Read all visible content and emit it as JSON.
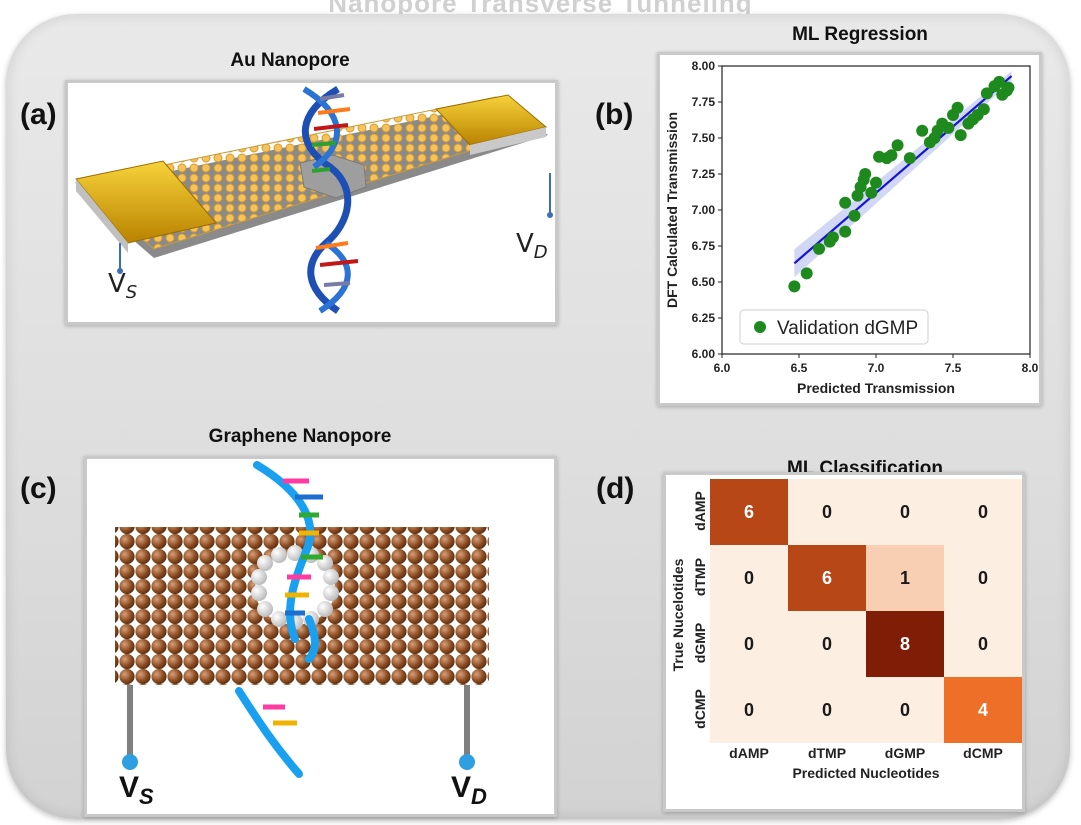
{
  "banner": "Nanopore Transverse Tunneling",
  "panel_a": {
    "label": "(a)",
    "title": "Au Nanopore",
    "vs": "V",
    "vs_sub": "S",
    "vd": "V",
    "vd_sub": "D"
  },
  "panel_b": {
    "label": "(b)",
    "title": "ML Regression"
  },
  "panel_c": {
    "label": "(c)",
    "title": "Graphene Nanopore",
    "vs": "V",
    "vs_sub": "S",
    "vd": "V",
    "vd_sub": "D"
  },
  "panel_d": {
    "label": "(d)",
    "title": "ML Classification"
  },
  "colors": {
    "scatter": "#1e8a1e",
    "fit": "#1515d0",
    "heat_low": "#fdeee2",
    "heat_high": "#7f1d06",
    "dna_blue": "#1e5fd0",
    "gold": "#f0b400"
  },
  "chart_data": [
    {
      "type": "scatter",
      "xlabel": "Predicted Transmission",
      "ylabel": "DFT Calculated Transmission",
      "xlim": [
        6.0,
        8.0
      ],
      "ylim": [
        6.0,
        8.0
      ],
      "xticks": [
        "6.0",
        "6.5",
        "7.0",
        "7.5",
        "8.0"
      ],
      "yticks": [
        "6.00",
        "6.25",
        "6.50",
        "6.75",
        "7.00",
        "7.25",
        "7.50",
        "7.75",
        "8.00"
      ],
      "legend": "Validation dGMP",
      "legend_position": "lower-right",
      "series": [
        {
          "name": "Validation dGMP",
          "points": [
            [
              6.47,
              6.47
            ],
            [
              6.55,
              6.56
            ],
            [
              6.63,
              6.73
            ],
            [
              6.7,
              6.78
            ],
            [
              6.72,
              6.81
            ],
            [
              6.8,
              6.85
            ],
            [
              6.8,
              7.05
            ],
            [
              6.86,
              6.96
            ],
            [
              6.88,
              7.1
            ],
            [
              6.9,
              7.16
            ],
            [
              6.92,
              7.21
            ],
            [
              6.93,
              7.25
            ],
            [
              6.97,
              7.12
            ],
            [
              7.0,
              7.19
            ],
            [
              7.02,
              7.37
            ],
            [
              7.07,
              7.36
            ],
            [
              7.1,
              7.38
            ],
            [
              7.14,
              7.45
            ],
            [
              7.22,
              7.36
            ],
            [
              7.3,
              7.55
            ],
            [
              7.35,
              7.47
            ],
            [
              7.38,
              7.5
            ],
            [
              7.4,
              7.55
            ],
            [
              7.43,
              7.6
            ],
            [
              7.47,
              7.57
            ],
            [
              7.5,
              7.66
            ],
            [
              7.53,
              7.71
            ],
            [
              7.55,
              7.52
            ],
            [
              7.6,
              7.6
            ],
            [
              7.63,
              7.63
            ],
            [
              7.66,
              7.66
            ],
            [
              7.7,
              7.7
            ],
            [
              7.72,
              7.81
            ],
            [
              7.77,
              7.86
            ],
            [
              7.8,
              7.89
            ],
            [
              7.82,
              7.8
            ],
            [
              7.85,
              7.83
            ],
            [
              7.86,
              7.85
            ]
          ]
        }
      ],
      "fit_line": [
        [
          6.47,
          6.63
        ],
        [
          7.88,
          7.93
        ]
      ]
    },
    {
      "type": "heatmap",
      "xlabel": "Predicted Nucleotides",
      "ylabel": "True Nucelotides",
      "x_categories": [
        "dAMP",
        "dTMP",
        "dGMP",
        "dCMP"
      ],
      "y_categories": [
        "dAMP",
        "dTMP",
        "dGMP",
        "dCMP"
      ],
      "values": [
        [
          6,
          0,
          0,
          0
        ],
        [
          0,
          6,
          1,
          0
        ],
        [
          0,
          0,
          8,
          0
        ],
        [
          0,
          0,
          0,
          4
        ]
      ]
    }
  ]
}
